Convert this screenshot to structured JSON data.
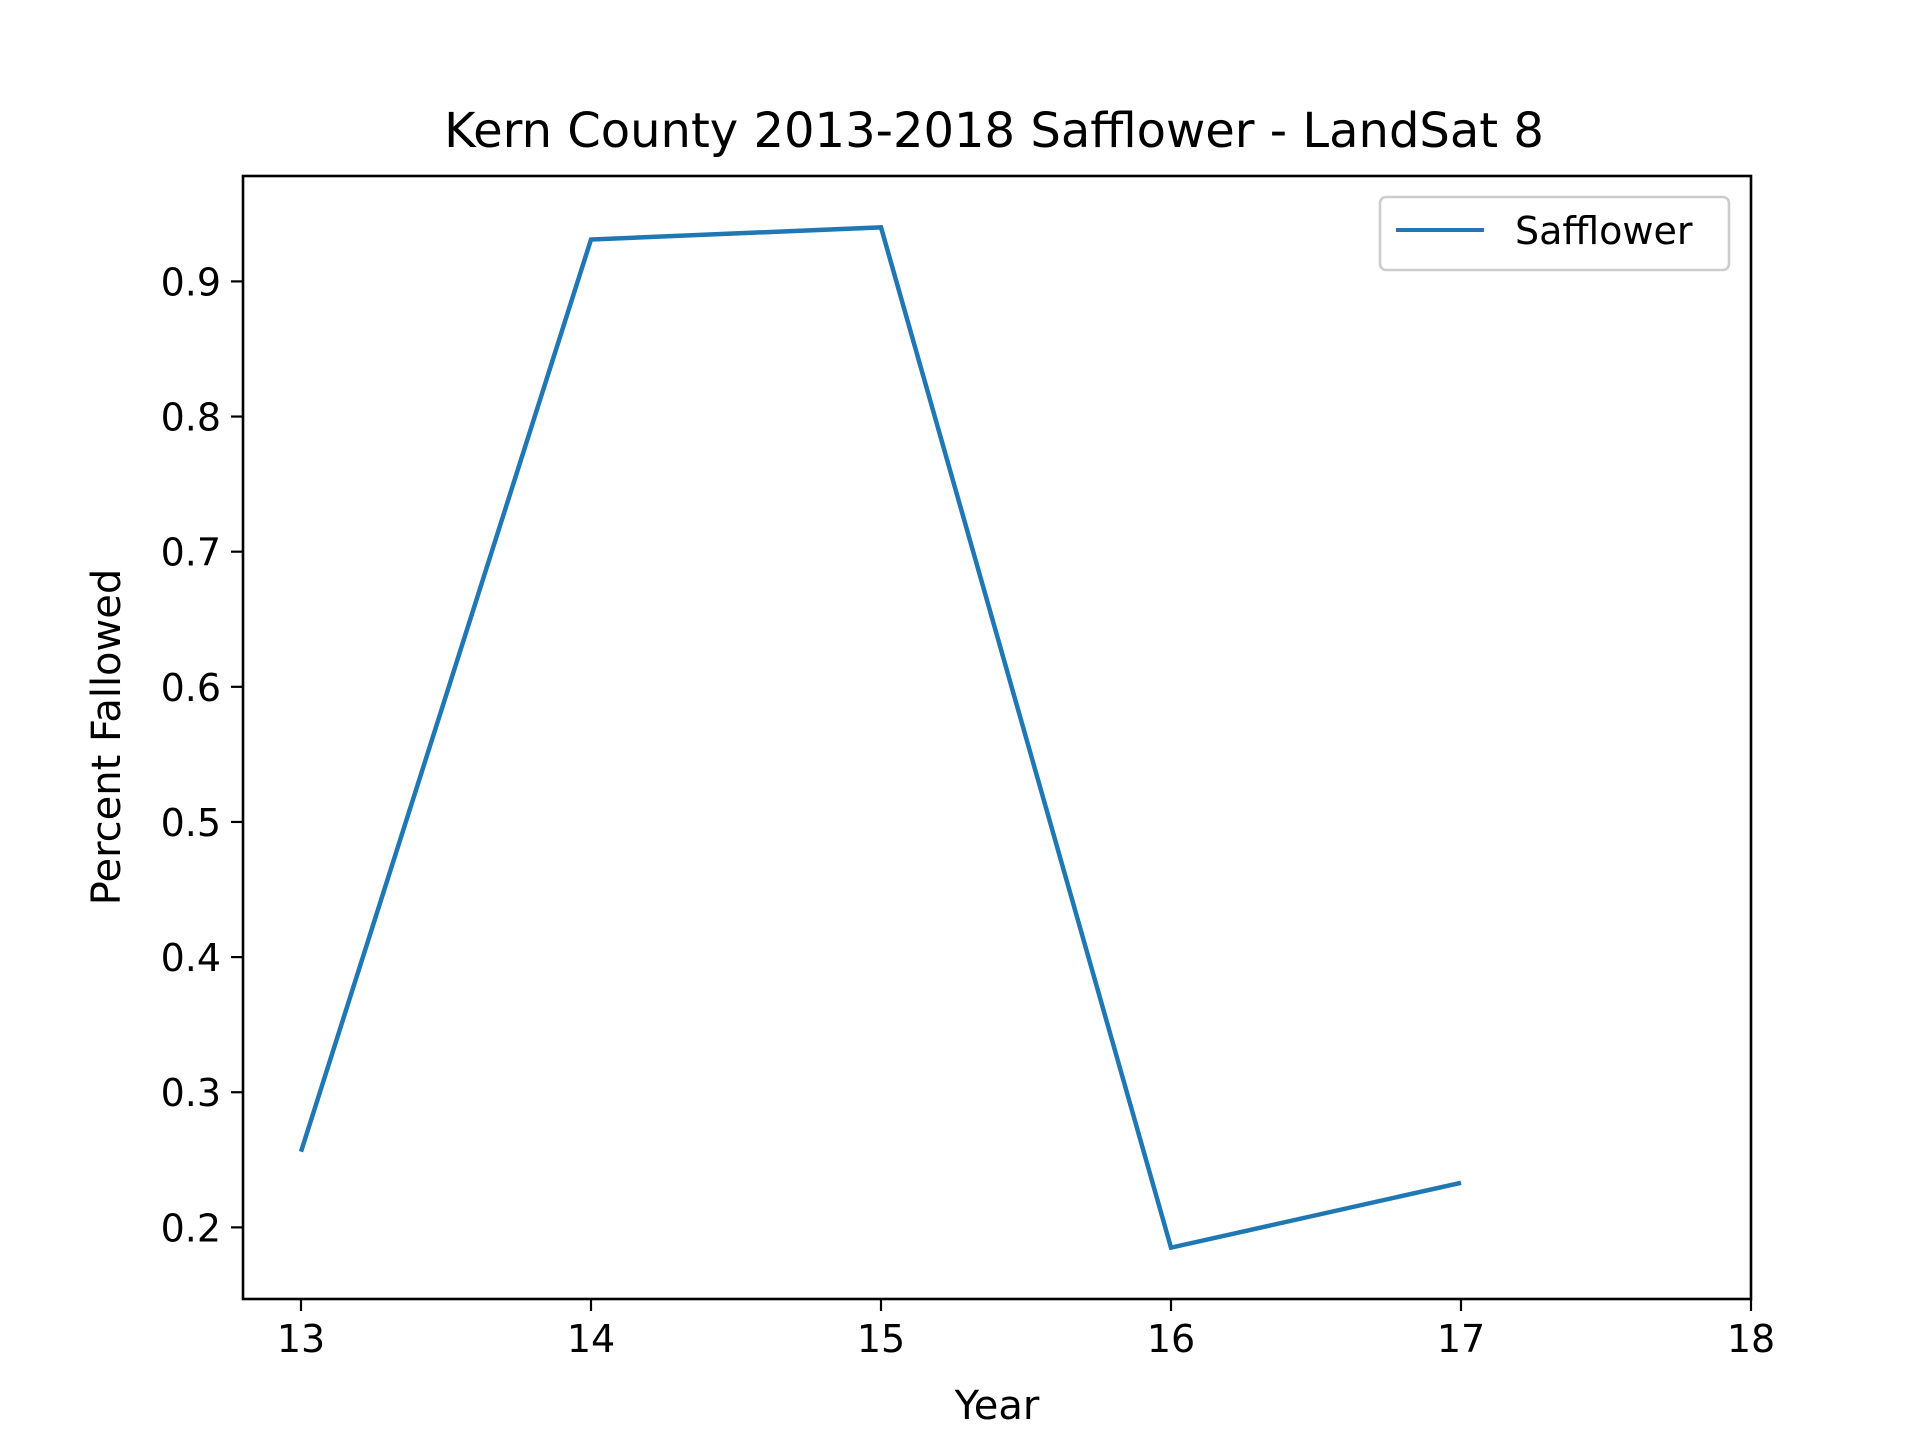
{
  "chart_data": {
    "type": "line",
    "title": "Kern County 2013-2018 Safflower - LandSat 8",
    "xlabel": "Year",
    "ylabel": "Percent Fallowed",
    "x": [
      13,
      14,
      15,
      16,
      17
    ],
    "series": [
      {
        "name": "Safflower",
        "color": "#1f77b4",
        "values": [
          0.256,
          0.931,
          0.94,
          0.185,
          0.233
        ]
      }
    ],
    "xlim": [
      12.8,
      18
    ],
    "ylim": [
      0.147,
      0.978
    ],
    "xticks": [
      "13",
      "14",
      "15",
      "16",
      "17",
      "18"
    ],
    "yticks": [
      "0.2",
      "0.3",
      "0.4",
      "0.5",
      "0.6",
      "0.7",
      "0.8",
      "0.9"
    ],
    "grid": false,
    "legend_position": "top-right"
  }
}
